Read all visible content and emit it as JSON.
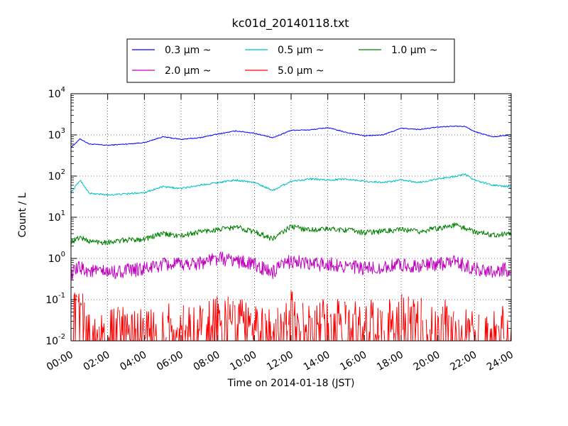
{
  "chart_data": {
    "type": "line",
    "title": "kc01d_20140118.txt",
    "xlabel": "Time on 2014-01-18 (JST)",
    "ylabel": "Count / L",
    "y_scale": "log",
    "ylim": [
      0.01,
      10000
    ],
    "y_ticks": [
      {
        "base": "10",
        "exp": "-2"
      },
      {
        "base": "10",
        "exp": "-1"
      },
      {
        "base": "10",
        "exp": "0"
      },
      {
        "base": "10",
        "exp": "1"
      },
      {
        "base": "10",
        "exp": "2"
      },
      {
        "base": "10",
        "exp": "3"
      },
      {
        "base": "10",
        "exp": "4"
      }
    ],
    "xlim": [
      0,
      24
    ],
    "x_ticks": [
      "00:00",
      "02:00",
      "04:00",
      "06:00",
      "08:00",
      "10:00",
      "12:00",
      "14:00",
      "16:00",
      "18:00",
      "20:00",
      "22:00",
      "24:00"
    ],
    "grid": true,
    "legend_position": "top-center",
    "series": [
      {
        "name": "0.3 μm ~",
        "color": "#0000ff",
        "x": [
          0,
          0.5,
          1,
          2,
          3,
          4,
          5,
          6,
          7,
          8,
          9,
          10,
          11,
          12,
          13,
          14,
          15,
          16,
          17,
          18,
          19,
          20,
          21,
          21.5,
          22,
          23,
          24
        ],
        "y": [
          500,
          800,
          600,
          560,
          600,
          650,
          900,
          780,
          850,
          1050,
          1250,
          1100,
          850,
          1300,
          1320,
          1500,
          1150,
          950,
          1000,
          1450,
          1350,
          1550,
          1650,
          1600,
          1200,
          900,
          1000
        ]
      },
      {
        "name": "0.5 μm ~",
        "color": "#00bfbf",
        "x": [
          0,
          0.5,
          1,
          2,
          3,
          4,
          5,
          6,
          7,
          8,
          9,
          10,
          11,
          12,
          13,
          14,
          15,
          16,
          17,
          18,
          19,
          20,
          21,
          21.5,
          22,
          23,
          24
        ],
        "y": [
          40,
          80,
          38,
          35,
          37,
          40,
          55,
          50,
          60,
          70,
          80,
          70,
          45,
          75,
          85,
          80,
          85,
          75,
          70,
          80,
          70,
          85,
          100,
          110,
          80,
          60,
          55
        ]
      },
      {
        "name": "1.0 μm ~",
        "color": "#008000",
        "x": [
          0,
          0.5,
          1,
          2,
          3,
          4,
          5,
          6,
          7,
          8,
          9,
          10,
          11,
          12,
          13,
          14,
          15,
          16,
          17,
          18,
          19,
          20,
          21,
          22,
          23,
          24
        ],
        "y": [
          2.5,
          3.3,
          2.6,
          2.5,
          2.8,
          3,
          4,
          3.5,
          4.5,
          5,
          5.8,
          4.5,
          3,
          6,
          5,
          5.2,
          5,
          4.3,
          4.6,
          5,
          4.5,
          5.5,
          6.5,
          4.5,
          3.8,
          4
        ]
      },
      {
        "name": "2.0 μm ~",
        "color": "#bf00bf",
        "x": [
          0,
          0.5,
          1,
          2,
          3,
          4,
          5,
          6,
          7,
          8,
          9,
          10,
          11,
          12,
          13,
          14,
          15,
          16,
          17,
          18,
          19,
          20,
          21,
          22,
          23,
          24
        ],
        "y": [
          0.4,
          0.6,
          0.5,
          0.45,
          0.5,
          0.55,
          0.7,
          0.7,
          0.8,
          1,
          0.9,
          0.7,
          0.45,
          0.9,
          0.7,
          0.75,
          0.65,
          0.55,
          0.6,
          0.7,
          0.65,
          0.75,
          0.8,
          0.55,
          0.5,
          0.55
        ]
      },
      {
        "name": "5.0 μm ~",
        "color": "#ff0000",
        "x": [
          0,
          0.5,
          1,
          2,
          3,
          4,
          5,
          6,
          7,
          8,
          9,
          10,
          11,
          12,
          13,
          14,
          15,
          16,
          17,
          18,
          19,
          20,
          21,
          22,
          23,
          24
        ],
        "y": [
          0.04,
          0.1,
          0.02,
          0.02,
          0.03,
          0.02,
          0.03,
          0.03,
          0.03,
          0.05,
          0.04,
          0.03,
          0.02,
          0.06,
          0.03,
          0.05,
          0.03,
          0.04,
          0.03,
          0.05,
          0.04,
          0.04,
          0.03,
          0.02,
          0.02,
          0.03
        ]
      }
    ]
  }
}
